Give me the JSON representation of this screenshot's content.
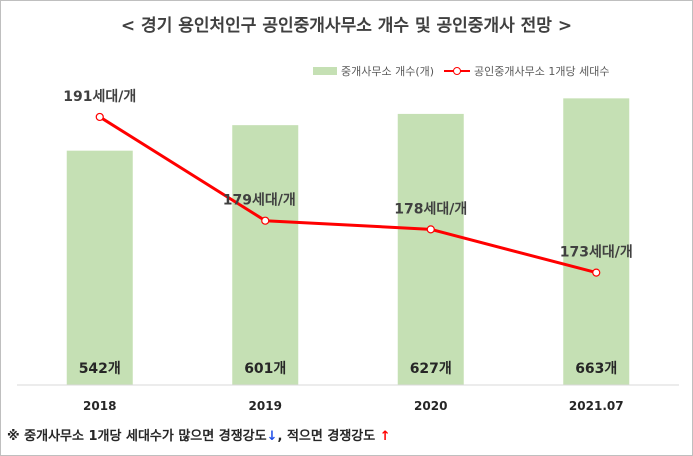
{
  "title": "< 경기 용인처인구 공인중개사무소 개수 및 공인중개사 전망 >",
  "legend": {
    "bar_label": "중개사무소 개수(개)",
    "line_label": "공인중개사무소 1개당 세대수"
  },
  "colors": {
    "bar": "#c5e0b4",
    "line": "#ff0000",
    "grid": "#d9d9d9"
  },
  "chart_data": {
    "type": "bar+line",
    "title": "< 경기 용인처인구 공인중개사무소 개수 및 공인중개사 전망 >",
    "categories": [
      "2018",
      "2019",
      "2020",
      "2021.07"
    ],
    "series": [
      {
        "name": "중개사무소 개수(개)",
        "type": "bar",
        "values": [
          542,
          601,
          627,
          663
        ],
        "labels": [
          "542개",
          "601개",
          "627개",
          "663개"
        ]
      },
      {
        "name": "공인중개사무소 1개당 세대수",
        "type": "line",
        "values": [
          191,
          179,
          178,
          173
        ],
        "labels": [
          "191세대/개",
          "179세대/개",
          "178세대/개",
          "173세대/개"
        ]
      }
    ],
    "bar_axis_range": [
      0,
      680
    ],
    "line_axis_range": [
      160,
      194
    ],
    "grid": false
  },
  "footnote": {
    "part1": "※ 중개사무소 1개당 세대수가 많으면 경쟁강도",
    "arrow_down": "↓",
    "part2": ", 적으면 경쟁강도 ",
    "arrow_up": "↑"
  }
}
